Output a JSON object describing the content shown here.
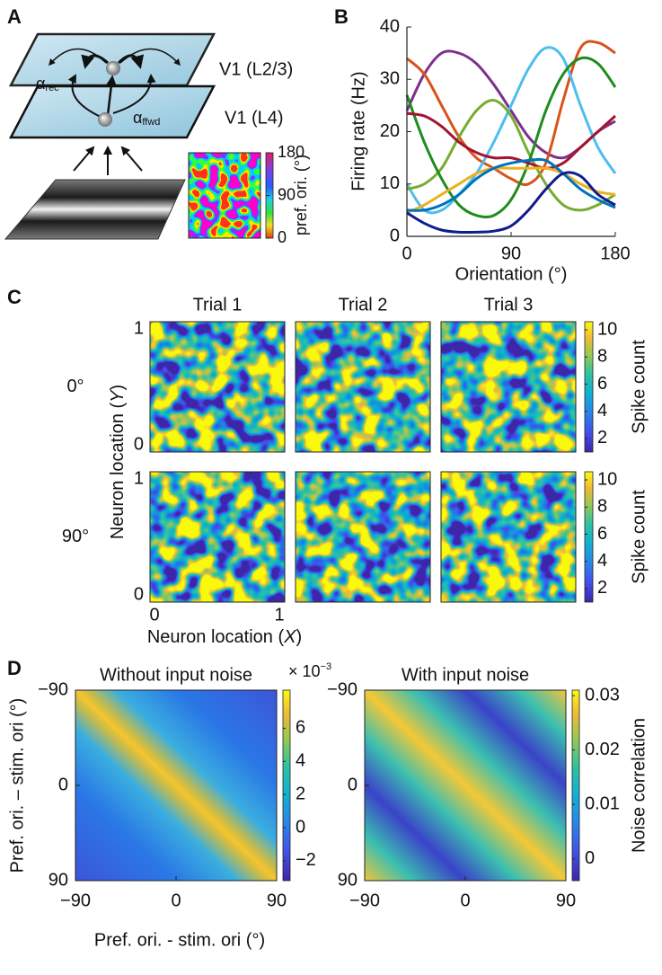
{
  "diagram": {
    "panel_label": "A",
    "layer_top": "V1 (L2/3)",
    "layer_bottom": "V1 (L4)",
    "alpha_rec": {
      "symbol": "α",
      "sub": "rec"
    },
    "alpha_ffwd": {
      "symbol": "α",
      "sub": "ffwd"
    },
    "colorbar": {
      "label": "pref. ori. (°)",
      "lim": [
        0,
        180
      ],
      "ticks": [
        0,
        90,
        180
      ]
    }
  },
  "chart_data": [
    {
      "type": "line",
      "panel_label": "B",
      "xlabel": "Orientation (°)",
      "ylabel": "Firing rate (Hz)",
      "x": [
        0,
        15,
        30,
        45,
        60,
        75,
        90,
        105,
        120,
        135,
        150,
        165,
        180
      ],
      "xlim": [
        0,
        180
      ],
      "ylim": [
        0,
        40
      ],
      "xticks": [
        0,
        90,
        180
      ],
      "yticks": [
        0,
        10,
        20,
        30,
        40
      ],
      "series": [
        {
          "color": "#7E2F8E",
          "values": [
            24,
            31,
            35,
            35,
            33,
            29,
            24,
            19,
            16,
            15,
            17,
            20,
            22
          ]
        },
        {
          "color": "#D95319",
          "values": [
            34,
            31,
            25,
            19,
            15,
            13,
            11,
            10,
            14,
            26,
            36,
            37,
            35
          ]
        },
        {
          "color": "#4DBEEE",
          "values": [
            10,
            5,
            5,
            8,
            12,
            18,
            25,
            32,
            36,
            34,
            25,
            17,
            12
          ]
        },
        {
          "color": "#77AC30",
          "values": [
            9,
            10,
            13,
            19,
            24,
            26,
            23,
            16,
            10,
            6,
            5,
            6,
            8
          ]
        },
        {
          "color": "#1E8C1E",
          "values": [
            27,
            18,
            11,
            6,
            4,
            4,
            7,
            14,
            24,
            31,
            34,
            33,
            28.5
          ]
        },
        {
          "color": "#A2142F",
          "values": [
            23.5,
            23,
            21,
            18,
            16,
            15,
            15,
            14,
            13,
            14,
            17,
            20,
            23
          ]
        },
        {
          "color": "#EDB120",
          "values": [
            4.5,
            6,
            8,
            10,
            12,
            13,
            13,
            13,
            13,
            12,
            10,
            8.5,
            8
          ]
        },
        {
          "color": "#0072BD",
          "values": [
            5,
            5,
            6,
            8,
            11,
            13,
            14,
            14.5,
            14.5,
            12,
            9,
            7,
            5.5
          ]
        },
        {
          "color": "#101C8C",
          "values": [
            4.5,
            2.5,
            1.2,
            0.8,
            0.8,
            1,
            2,
            5,
            9,
            12,
            11.5,
            8,
            6
          ]
        }
      ]
    },
    {
      "type": "heatmap-grid",
      "panel_label": "C",
      "column_titles": [
        "Trial 1",
        "Trial 2",
        "Trial 3"
      ],
      "row_labels": [
        "0°",
        "90°"
      ],
      "xlabel_parts": [
        "Neuron location (",
        "X",
        ")"
      ],
      "ylabel_parts": [
        "Neuron location (",
        "Y",
        ")"
      ],
      "xlim": [
        0,
        1
      ],
      "ylim": [
        0,
        1
      ],
      "xticks": [
        0,
        1
      ],
      "yticks": [
        0,
        1
      ],
      "colorbar": {
        "label": "Spike count",
        "lim": [
          1,
          10.6
        ],
        "ticks": [
          2,
          4,
          6,
          8,
          10
        ]
      }
    },
    {
      "type": "heatmap-pair",
      "panel_label": "D",
      "titles": [
        "Without input noise",
        "With input noise"
      ],
      "xlabel": "Pref. ori. - stim. ori (°)",
      "ylabel": "Pref. ori. – stim. ori (°)",
      "xlim": [
        -90,
        90
      ],
      "ylim": [
        -90,
        90
      ],
      "y_reversed": true,
      "xticks": [
        {
          "value": -90,
          "label": "−90"
        },
        0,
        90
      ],
      "yticks": [
        {
          "value": -90,
          "label": "−90"
        },
        0,
        90
      ],
      "colorbars": [
        {
          "lim": [
            -3.2,
            8.3
          ],
          "ticks": [
            {
              "value": -2,
              "label": "−2"
            },
            0,
            2,
            4,
            6
          ],
          "exponent_base": "× 10",
          "exponent": "−3"
        },
        {
          "label": "Noise correlation",
          "lim": [
            -0.004,
            0.031
          ],
          "ticks": [
            0,
            0.01,
            0.02,
            0.03
          ]
        }
      ]
    }
  ]
}
